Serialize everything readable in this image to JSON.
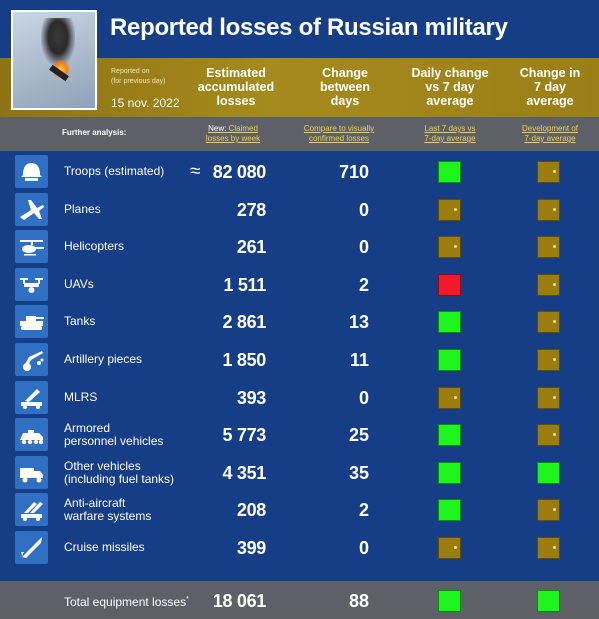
{
  "title": "Reported losses of Russian military",
  "reported_on": "Reported on",
  "reported_note": "(for previous day)",
  "date": "15 nov. 2022",
  "columns": {
    "estimated": [
      "Estimated",
      "accumulated",
      "losses"
    ],
    "change": [
      "Change",
      "between",
      "days"
    ],
    "daily": [
      "Daily change",
      "vs 7 day",
      "average"
    ],
    "change7": [
      "Change in",
      "7 day",
      "average"
    ]
  },
  "further_analysis": "Further analysis:",
  "links": {
    "new_prefix": "New:",
    "claimed": [
      "Claimed",
      "losses by week"
    ],
    "compare": [
      "Compare to visually",
      "confirmed losses"
    ],
    "last7": [
      "Last 7 days vs",
      "7-day average"
    ],
    "development": [
      "Development of",
      "7-day average"
    ]
  },
  "approx_symbol": "≈",
  "rows": [
    {
      "icon": "helmet-icon",
      "name": [
        "Troops (estimated)"
      ],
      "value": "82 080",
      "change": "710",
      "daily": "green",
      "trend": "gold",
      "approx": true
    },
    {
      "icon": "plane-icon",
      "name": [
        "Planes"
      ],
      "value": "278",
      "change": "0",
      "daily": "gold",
      "trend": "gold"
    },
    {
      "icon": "helicopter-icon",
      "name": [
        "Helicopters"
      ],
      "value": "261",
      "change": "0",
      "daily": "gold",
      "trend": "gold"
    },
    {
      "icon": "drone-icon",
      "name": [
        "UAVs"
      ],
      "value": "1 511",
      "change": "2",
      "daily": "red",
      "trend": "gold"
    },
    {
      "icon": "tank-icon",
      "name": [
        "Tanks"
      ],
      "value": "2 861",
      "change": "13",
      "daily": "green",
      "trend": "gold"
    },
    {
      "icon": "artillery-icon",
      "name": [
        "Artillery pieces"
      ],
      "value": "1 850",
      "change": "11",
      "daily": "green",
      "trend": "gold"
    },
    {
      "icon": "mlrs-icon",
      "name": [
        "MLRS"
      ],
      "value": "393",
      "change": "0",
      "daily": "gold",
      "trend": "gold"
    },
    {
      "icon": "apc-icon",
      "name": [
        "Armored",
        "personnel vehicles"
      ],
      "value": "5 773",
      "change": "25",
      "daily": "green",
      "trend": "gold"
    },
    {
      "icon": "truck-icon",
      "name": [
        "Other vehicles",
        "(including fuel tanks)"
      ],
      "value": "4 351",
      "change": "35",
      "daily": "green",
      "trend": "green"
    },
    {
      "icon": "anti-aircraft-icon",
      "name": [
        "Anti-aircraft",
        "warfare systems"
      ],
      "value": "208",
      "change": "2",
      "daily": "green",
      "trend": "gold"
    },
    {
      "icon": "missile-icon",
      "name": [
        "Cruise missiles"
      ],
      "value": "399",
      "change": "0",
      "daily": "gold",
      "trend": "gold"
    }
  ],
  "total": {
    "name": "Total equipment losses",
    "mark": "*",
    "value": "18 061",
    "change": "88",
    "daily": "green",
    "trend": "green"
  }
}
